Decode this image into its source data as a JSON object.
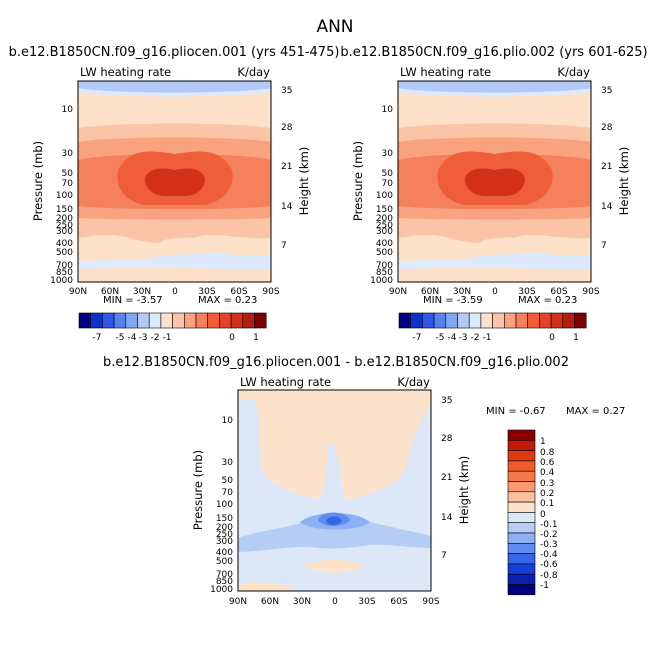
{
  "figure": {
    "title": "ANN"
  },
  "chart_data": [
    {
      "type": "heatmap",
      "title": "b.e12.B1850CN.f09_g16.pliocen.001 (yrs 451-475)",
      "variable": "LW heating rate",
      "units": "K/day",
      "ylabel": "Pressure (mb)",
      "ylabel_right": "Height (km)",
      "x_ticks": [
        "90N",
        "60N",
        "30N",
        "0",
        "30S",
        "60S",
        "90S"
      ],
      "y_ticks": [
        "10",
        "30",
        "50",
        "70",
        "100",
        "150",
        "200",
        "250",
        "300",
        "400",
        "500",
        "700",
        "850",
        "1000"
      ],
      "height_ticks": [
        "7",
        "14",
        "21",
        "28",
        "35"
      ],
      "min_label": "MIN = -3.57",
      "max_label": "MAX = 0.23",
      "colorbar_labels": [
        "-7",
        "-5",
        "-4",
        "-3",
        "-2",
        "-1",
        "0",
        "1"
      ],
      "colors": [
        "#000080",
        "#0c2fcf",
        "#2f59e8",
        "#5a81f0",
        "#86a6f4",
        "#b4c9f7",
        "#ddeafd",
        "#fde0c8",
        "#fcc4a7",
        "#f8a27f",
        "#f4805c",
        "#ef5d3a",
        "#e64225",
        "#d3301a",
        "#b22010",
        "#7f0000"
      ]
    },
    {
      "type": "heatmap",
      "title": "b.e12.B1850CN.f09_g16.plio.002 (yrs 601-625)",
      "variable": "LW heating rate",
      "units": "K/day",
      "ylabel": "Pressure (mb)",
      "ylabel_right": "Height (km)",
      "x_ticks": [
        "90N",
        "60N",
        "30N",
        "0",
        "30S",
        "60S",
        "90S"
      ],
      "y_ticks": [
        "10",
        "30",
        "50",
        "70",
        "100",
        "150",
        "200",
        "250",
        "300",
        "400",
        "500",
        "700",
        "850",
        "1000"
      ],
      "height_ticks": [
        "7",
        "14",
        "21",
        "28",
        "35"
      ],
      "min_label": "MIN = -3.59",
      "max_label": "MAX = 0.23",
      "colorbar_labels": [
        "-7",
        "-5",
        "-4",
        "-3",
        "-2",
        "-1",
        "0",
        "1"
      ],
      "colors": [
        "#000080",
        "#0c2fcf",
        "#2f59e8",
        "#5a81f0",
        "#86a6f4",
        "#b4c9f7",
        "#ddeafd",
        "#fde0c8",
        "#fcc4a7",
        "#f8a27f",
        "#f4805c",
        "#ef5d3a",
        "#e64225",
        "#d3301a",
        "#b22010",
        "#7f0000"
      ]
    },
    {
      "type": "heatmap",
      "title": "b.e12.B1850CN.f09_g16.pliocen.001 - b.e12.B1850CN.f09_g16.plio.002",
      "variable": "LW heating rate",
      "units": "K/day",
      "ylabel": "Pressure (mb)",
      "ylabel_right": "Height (km)",
      "x_ticks": [
        "90N",
        "60N",
        "30N",
        "0",
        "30S",
        "60S",
        "90S"
      ],
      "y_ticks": [
        "10",
        "30",
        "50",
        "70",
        "100",
        "150",
        "200",
        "250",
        "300",
        "400",
        "500",
        "700",
        "850",
        "1000"
      ],
      "height_ticks": [
        "7",
        "14",
        "21",
        "28",
        "35"
      ],
      "min_label": "MIN = -0.67",
      "max_label": "MAX = 0.27",
      "colorbar_labels": [
        "1",
        "0.8",
        "0.6",
        "0.4",
        "0.3",
        "0.2",
        "0.1",
        "0",
        "-0.1",
        "-0.2",
        "-0.3",
        "-0.4",
        "-0.6",
        "-0.8",
        "-1"
      ],
      "colors": [
        "#8b0000",
        "#c21a05",
        "#e0390f",
        "#f05a28",
        "#f47a4b",
        "#f89b73",
        "#fbbf9e",
        "#fde3cc",
        "#dce8f8",
        "#b5cdf5",
        "#8cb0f2",
        "#5f8cee",
        "#3565e6",
        "#143fd6",
        "#0a1fb0",
        "#000080"
      ]
    }
  ]
}
